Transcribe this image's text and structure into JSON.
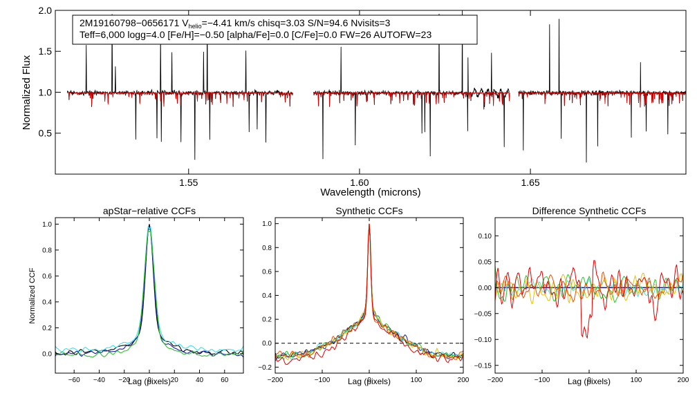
{
  "chart_data": [
    {
      "type": "line",
      "id": "spectrum",
      "ylabel": "Normalized Flux",
      "xlabel": "Wavelength (microns)",
      "xlim": [
        1.511,
        1.6955
      ],
      "ylim": [
        0.0,
        2.0
      ],
      "x_ticks": [
        "1.55",
        "1.60",
        "1.65"
      ],
      "x_tick_values": [
        1.55,
        1.6,
        1.65
      ],
      "y_ticks": [
        "0.5",
        "1.0",
        "1.5",
        "2.0"
      ],
      "y_tick_values": [
        0.5,
        1.0,
        1.5,
        2.0
      ],
      "annotation": {
        "line1_a": "2M19160798−0656171  V",
        "line1_sub": "helio",
        "line1_b": "=−4.41 km/s  chisq=3.03  S/N=94.6  Nvisits=3",
        "line2": "Teff=6,000 logg=4.0 [Fe/H]=−0.50 [alpha/Fe]=0.0 [C/Fe]=0.0 FW=26 AUTOFW=23"
      },
      "chips": [
        [
          1.5145,
          1.5805
        ],
        [
          1.5865,
          1.644
        ],
        [
          1.6465,
          1.6955
        ]
      ],
      "series": [
        {
          "name": "observed",
          "color": "#000000"
        },
        {
          "name": "model",
          "color": "#d00000"
        }
      ]
    },
    {
      "type": "line",
      "id": "apstar",
      "title": "apStar−relative CCFs",
      "xlabel": "Lag (pixels)",
      "ylabel": "Normalized CCF",
      "xlim": [
        -75,
        75
      ],
      "ylim": [
        -0.15,
        1.05
      ],
      "x_ticks": [
        "−60",
        "−40",
        "−20",
        "0",
        "20",
        "40",
        "60"
      ],
      "x_tick_values": [
        -60,
        -40,
        -20,
        0,
        20,
        40,
        60
      ],
      "y_ticks": [
        "0.0",
        "0.2",
        "0.4",
        "0.6",
        "0.8",
        "1.0"
      ],
      "y_tick_values": [
        0.0,
        0.2,
        0.4,
        0.6,
        0.8,
        1.0
      ],
      "series": [
        {
          "name": "ccf1",
          "color": "#000000",
          "width": 0.25,
          "base": 0.01
        },
        {
          "name": "ccf2",
          "color": "#1a1aa8",
          "width": 0.25,
          "base": 0.0
        },
        {
          "name": "ccf3",
          "color": "#40e0e0",
          "width": 0.22,
          "base": 0.03
        },
        {
          "name": "ccf4",
          "color": "#30c030",
          "width": 0.18,
          "base": -0.01
        }
      ]
    },
    {
      "type": "line",
      "id": "synthetic",
      "title": "Synthetic CCFs",
      "xlabel": "Lag (pixels)",
      "xlim": [
        -200,
        200
      ],
      "ylim": [
        -0.25,
        1.05
      ],
      "x_ticks": [
        "−200",
        "−100",
        "0",
        "100",
        "200"
      ],
      "x_tick_values": [
        -200,
        -100,
        0,
        100,
        200
      ],
      "y_ticks": [
        "−0.2",
        "0.0",
        "0.2",
        "0.4",
        "0.6",
        "0.8",
        "1.0"
      ],
      "y_tick_values": [
        -0.2,
        0.0,
        0.2,
        0.4,
        0.6,
        0.8,
        1.0
      ],
      "zero_line": true,
      "series": [
        {
          "name": "ccf1",
          "color": "#000000"
        },
        {
          "name": "ccf2",
          "color": "#1a1aa8"
        },
        {
          "name": "ccf3",
          "color": "#40e0e0"
        },
        {
          "name": "ccf4",
          "color": "#30c030"
        },
        {
          "name": "ccf5",
          "color": "#e8c000"
        },
        {
          "name": "ccf6",
          "color": "#e85000"
        },
        {
          "name": "ccf7",
          "color": "#e00000"
        }
      ]
    },
    {
      "type": "line",
      "id": "difference",
      "title": "Difference Synthetic CCFs",
      "xlabel": "Lag (pixels)",
      "xlim": [
        -200,
        200
      ],
      "ylim": [
        -0.165,
        0.135
      ],
      "x_ticks": [
        "−200",
        "−100",
        "0",
        "100",
        "200"
      ],
      "x_tick_values": [
        -200,
        -100,
        0,
        100,
        200
      ],
      "y_ticks": [
        "−0.15",
        "−0.10",
        "−0.05",
        "0.00",
        "0.05",
        "0.10"
      ],
      "y_tick_values": [
        -0.15,
        -0.1,
        -0.05,
        0.0,
        0.05,
        0.1
      ],
      "series": [
        {
          "name": "black",
          "color": "#000000"
        },
        {
          "name": "blue",
          "color": "#1a1aa8"
        },
        {
          "name": "cyan",
          "color": "#40e0e0"
        },
        {
          "name": "green",
          "color": "#30c030"
        },
        {
          "name": "yellow",
          "color": "#e8c000"
        },
        {
          "name": "orange",
          "color": "#e85000"
        },
        {
          "name": "red",
          "color": "#e00000"
        }
      ]
    }
  ]
}
